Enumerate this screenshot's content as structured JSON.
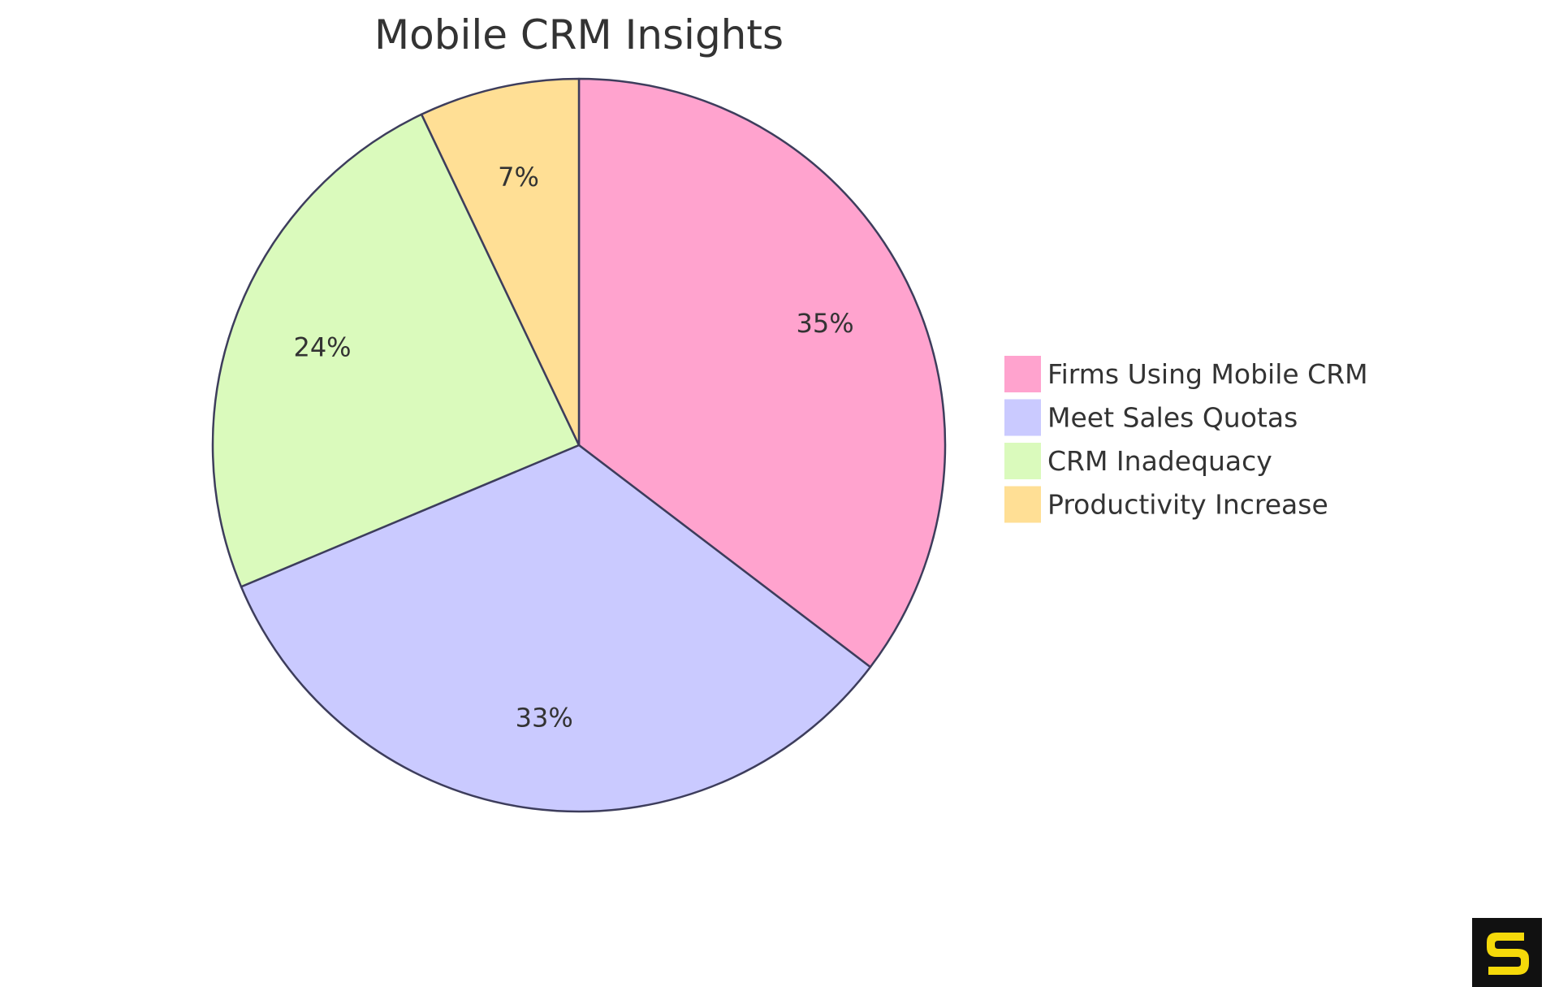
{
  "chart_data": {
    "type": "pie",
    "title": "Mobile CRM Insights",
    "slices": [
      {
        "name": "Firms Using Mobile CRM",
        "value": 35,
        "label": "35%",
        "color": "#FFA3CE"
      },
      {
        "name": "Meet Sales Quotas",
        "value": 33,
        "label": "33%",
        "color": "#CACAFF"
      },
      {
        "name": "CRM Inadequacy",
        "value": 24,
        "label": "24%",
        "color": "#DAFABC"
      },
      {
        "name": "Productivity Increase",
        "value": 7,
        "label": "7%",
        "color": "#FFDF95"
      }
    ],
    "start_angle_deg": 0,
    "direction": "clockwise",
    "legend_position": "right",
    "stroke_color": "#3D3D5C"
  },
  "logo": {
    "icon": "s-logo-icon",
    "background": "#111111",
    "color": "#F5D90A"
  }
}
